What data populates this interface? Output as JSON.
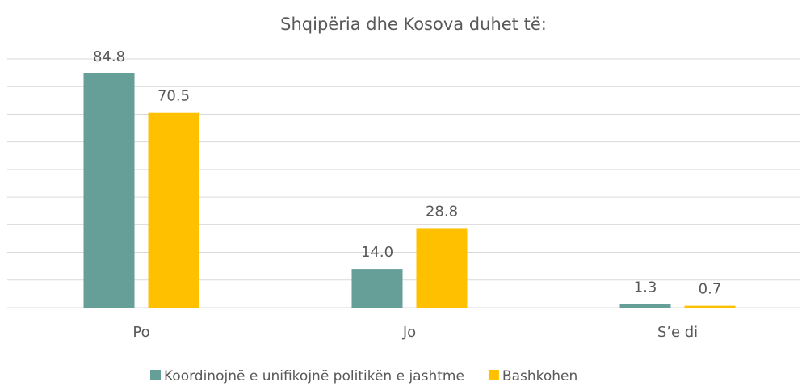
{
  "chart_data": {
    "type": "bar",
    "title": "Shqipëria dhe Kosova duhet të:",
    "categories": [
      "Po",
      "Jo",
      "S’e di"
    ],
    "series": [
      {
        "name": "Koordinojnë e unifikojnë politikën e jashtme",
        "color": "#669e98",
        "values": [
          84.8,
          14,
          1.3
        ],
        "value_labels": [
          "84.8",
          "14.0",
          "1.3"
        ]
      },
      {
        "name": "Bashkohen",
        "color": "#ffc000",
        "values": [
          70.5,
          28.8,
          0.7
        ],
        "value_labels": [
          "70.5",
          "28.8",
          "0.7"
        ]
      }
    ],
    "ylim": [
      0,
      90
    ],
    "yticks": [
      0,
      10,
      20,
      30,
      40,
      50,
      60,
      70,
      80,
      90
    ],
    "grid": true,
    "legend": "bottom"
  }
}
